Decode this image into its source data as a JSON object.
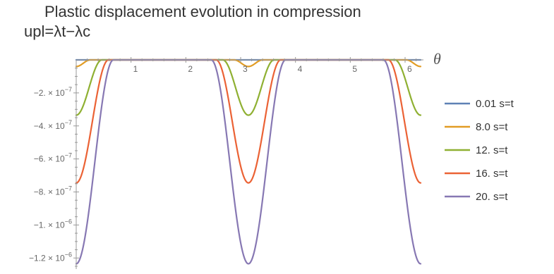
{
  "title": {
    "line1": "Plastic displacement evolution in compression",
    "line2": "upl=λt−λc"
  },
  "chart_data": {
    "type": "line",
    "title": "Plastic displacement evolution in compression",
    "subtitle": "upl=λt−λc",
    "xlabel": "θ",
    "ylabel": "",
    "xlim": [
      0,
      6.2832
    ],
    "ylim": [
      -1.25e-06,
      0
    ],
    "x_ticks": [
      {
        "value": 1,
        "label": "1"
      },
      {
        "value": 2,
        "label": "2"
      },
      {
        "value": 3,
        "label": "3"
      },
      {
        "value": 4,
        "label": "4"
      },
      {
        "value": 5,
        "label": "5"
      },
      {
        "value": 6,
        "label": "6"
      }
    ],
    "y_ticks": [
      {
        "value": -2e-07,
        "mant": "−2. × 10",
        "exp": "−7"
      },
      {
        "value": -4e-07,
        "mant": "−4. × 10",
        "exp": "−7"
      },
      {
        "value": -6e-07,
        "mant": "−6. × 10",
        "exp": "−7"
      },
      {
        "value": -8e-07,
        "mant": "−8. × 10",
        "exp": "−7"
      },
      {
        "value": -1e-06,
        "mant": "−1. × 10",
        "exp": "−6"
      },
      {
        "value": -1.2e-06,
        "mant": "−1.2 × 10",
        "exp": "−6"
      }
    ],
    "grid": false,
    "legend_position": "right",
    "curve_shape": "periodic in theta (period pi), zero plateaus near pi/2 and 3pi/2, minima at 0, pi, 2pi",
    "series": [
      {
        "name": "0.01 s=t",
        "color": "#5e81b5",
        "min_value": 0,
        "half_width": 0.0,
        "x": [
          0,
          1.5708,
          3.1416,
          4.7124,
          6.2832
        ],
        "y": [
          0,
          0,
          0,
          0,
          0
        ]
      },
      {
        "name": "8.0 s=t",
        "color": "#e19c24",
        "min_value": -4e-08,
        "half_width": 0.26,
        "x": [
          0,
          0.13,
          0.26,
          2.88,
          3.01,
          3.1416,
          3.27,
          3.4,
          6.02,
          6.15,
          6.2832
        ],
        "y": [
          -4e-08,
          -2e-08,
          0,
          0,
          -2e-08,
          -4e-08,
          -2e-08,
          0,
          0,
          -2e-08,
          -4e-08
        ]
      },
      {
        "name": "12. s=t",
        "color": "#8fb032",
        "min_value": -3.35e-07,
        "half_width": 0.47,
        "x": [
          0,
          0.12,
          0.24,
          0.36,
          0.47,
          2.67,
          2.78,
          2.9,
          3.02,
          3.1416,
          3.26,
          3.38,
          3.5,
          3.61,
          5.81,
          5.92,
          6.04,
          6.16,
          6.2832
        ],
        "y": [
          -3.35e-07,
          -3.1e-07,
          -2.3e-07,
          -1e-07,
          0,
          0,
          -1e-07,
          -2.3e-07,
          -3.1e-07,
          -3.35e-07,
          -3.1e-07,
          -2.3e-07,
          -1e-07,
          0,
          0,
          -1e-07,
          -2.3e-07,
          -3.1e-07,
          -3.35e-07
        ]
      },
      {
        "name": "16. s=t",
        "color": "#eb6235",
        "min_value": -7.45e-07,
        "half_width": 0.59,
        "x": [
          0,
          0.15,
          0.3,
          0.45,
          0.59,
          2.55,
          2.69,
          2.84,
          2.99,
          3.1416,
          3.29,
          3.44,
          3.59,
          3.73,
          5.69,
          5.83,
          5.98,
          6.13,
          6.2832
        ],
        "y": [
          -7.45e-07,
          -6.8e-07,
          -5e-07,
          -2.2e-07,
          0,
          0,
          -2.2e-07,
          -5e-07,
          -6.8e-07,
          -7.45e-07,
          -6.8e-07,
          -5e-07,
          -2.2e-07,
          0,
          0,
          -2.2e-07,
          -5e-07,
          -6.8e-07,
          -7.45e-07
        ]
      },
      {
        "name": "20. s=t",
        "color": "#8778b3",
        "min_value": -1.235e-06,
        "half_width": 0.68,
        "x": [
          0,
          0.17,
          0.34,
          0.51,
          0.68,
          2.46,
          2.63,
          2.8,
          2.97,
          3.1416,
          3.31,
          3.48,
          3.65,
          3.82,
          5.6,
          5.77,
          5.94,
          6.11,
          6.2832
        ],
        "y": [
          -1.235e-06,
          -1.12e-06,
          -8.2e-07,
          -3.6e-07,
          0,
          0,
          -3.6e-07,
          -8.2e-07,
          -1.12e-06,
          -1.235e-06,
          -1.12e-06,
          -8.2e-07,
          -3.6e-07,
          0,
          0,
          -3.6e-07,
          -8.2e-07,
          -1.12e-06,
          -1.235e-06
        ]
      }
    ]
  }
}
